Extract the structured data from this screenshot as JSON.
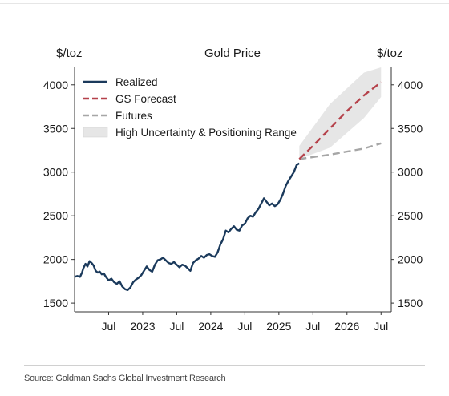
{
  "chart_data": {
    "type": "line",
    "title": "Gold Price",
    "ylabel_left": "$/toz",
    "ylabel_right": "$/toz",
    "source": "Source: Goldman Sachs Global Investment Research",
    "x_tick_labels": [
      "Jul",
      "2023",
      "Jul",
      "2024",
      "Jul",
      "2025",
      "Jul",
      "2026",
      "Jul"
    ],
    "x_ticks": [
      2022.5,
      2023.0,
      2023.5,
      2024.0,
      2024.5,
      2025.0,
      2025.5,
      2026.0,
      2026.5
    ],
    "xlim": [
      2022.0,
      2026.65
    ],
    "ylim": [
      1400,
      4200
    ],
    "y_ticks": [
      1500,
      2000,
      2500,
      3000,
      3500,
      4000
    ],
    "legend": {
      "placement": "top-left",
      "entries": [
        "Realized",
        "GS Forecast",
        "Futures",
        "High Uncertainty & Positioning Range"
      ]
    },
    "colors": {
      "realized": "#1b3a5c",
      "forecast": "#b5414a",
      "futures": "#a6a6a6",
      "band": "#e6e6e6"
    },
    "series": [
      {
        "name": "Realized",
        "x": [
          2022.0,
          2022.04,
          2022.08,
          2022.11,
          2022.13,
          2022.16,
          2022.19,
          2022.22,
          2022.25,
          2022.28,
          2022.31,
          2022.34,
          2022.37,
          2022.4,
          2022.43,
          2022.46,
          2022.5,
          2022.54,
          2022.58,
          2022.62,
          2022.66,
          2022.7,
          2022.74,
          2022.78,
          2022.82,
          2022.86,
          2022.9,
          2022.94,
          2022.98,
          2023.02,
          2023.06,
          2023.1,
          2023.14,
          2023.18,
          2023.22,
          2023.26,
          2023.3,
          2023.34,
          2023.38,
          2023.42,
          2023.46,
          2023.5,
          2023.54,
          2023.58,
          2023.62,
          2023.66,
          2023.7,
          2023.74,
          2023.78,
          2023.82,
          2023.86,
          2023.9,
          2023.94,
          2023.98,
          2024.02,
          2024.06,
          2024.1,
          2024.14,
          2024.18,
          2024.22,
          2024.26,
          2024.3,
          2024.34,
          2024.38,
          2024.42,
          2024.46,
          2024.5,
          2024.54,
          2024.58,
          2024.62,
          2024.66,
          2024.7,
          2024.74,
          2024.78,
          2024.82,
          2024.86,
          2024.9,
          2024.94,
          2024.98,
          2025.02,
          2025.06,
          2025.1,
          2025.14,
          2025.18,
          2025.22,
          2025.26,
          2025.3
        ],
        "values": [
          1800,
          1810,
          1800,
          1850,
          1900,
          1950,
          1920,
          1980,
          1960,
          1930,
          1870,
          1850,
          1860,
          1830,
          1840,
          1800,
          1760,
          1780,
          1740,
          1720,
          1750,
          1690,
          1660,
          1650,
          1680,
          1740,
          1770,
          1790,
          1820,
          1870,
          1920,
          1880,
          1860,
          1940,
          1990,
          2000,
          2020,
          1990,
          1960,
          1950,
          1970,
          1940,
          1910,
          1940,
          1930,
          1900,
          1870,
          1960,
          1990,
          2010,
          2040,
          2020,
          2050,
          2060,
          2040,
          2030,
          2080,
          2170,
          2230,
          2330,
          2310,
          2350,
          2380,
          2340,
          2330,
          2390,
          2410,
          2470,
          2500,
          2490,
          2540,
          2580,
          2640,
          2700,
          2660,
          2620,
          2640,
          2610,
          2630,
          2680,
          2750,
          2840,
          2900,
          2950,
          3000,
          3080,
          3100
        ]
      },
      {
        "name": "GS Forecast",
        "x": [
          2025.3,
          2025.5,
          2025.75,
          2026.0,
          2026.25,
          2026.5
        ],
        "values": [
          3150,
          3300,
          3500,
          3700,
          3880,
          4030
        ]
      },
      {
        "name": "Futures",
        "x": [
          2025.3,
          2025.75,
          2026.25,
          2026.5
        ],
        "values": [
          3150,
          3200,
          3270,
          3330
        ]
      },
      {
        "name": "High Uncertainty & Positioning Range",
        "x": [
          2025.3,
          2025.75,
          2026.25,
          2026.5
        ],
        "lower": [
          3150,
          3280,
          3620,
          3860
        ],
        "upper": [
          3300,
          3780,
          4140,
          4200
        ]
      }
    ]
  }
}
